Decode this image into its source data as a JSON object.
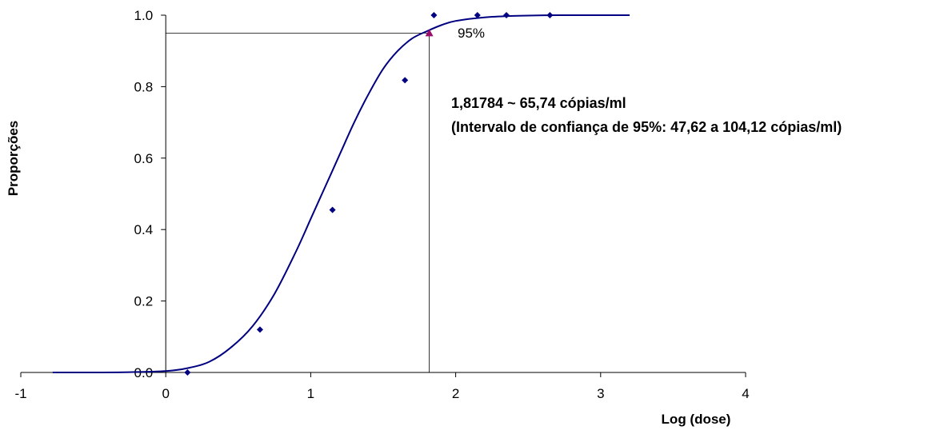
{
  "chart_data": {
    "type": "scatter",
    "title": "",
    "xlabel": "Log (dose)",
    "ylabel": "Proporções",
    "xlim": [
      -1,
      4
    ],
    "ylim": [
      0,
      1
    ],
    "x_ticks": [
      "-1",
      "0",
      "1",
      "2",
      "3",
      "4"
    ],
    "y_ticks": [
      "0.0",
      "0.2",
      "0.4",
      "0.6",
      "0.8",
      "1.0"
    ],
    "grid": false,
    "legend": "none",
    "series": [
      {
        "kind": "points",
        "marker": "diamond",
        "color": "#000080",
        "x": [
          0.15,
          0.65,
          1.15,
          1.65,
          1.85,
          2.15,
          2.35,
          2.65
        ],
        "y": [
          0.0,
          0.12,
          0.455,
          0.818,
          1.0,
          1.0,
          1.0,
          1.0
        ]
      },
      {
        "kind": "curve",
        "color": "#000080",
        "x": [
          -0.78,
          -0.5,
          -0.25,
          0.0,
          0.15,
          0.3,
          0.45,
          0.6,
          0.75,
          0.9,
          1.0,
          1.1,
          1.2,
          1.3,
          1.4,
          1.5,
          1.6,
          1.7,
          1.8,
          1.9,
          2.0,
          2.2,
          2.4,
          2.7,
          3.0,
          3.2
        ],
        "y": [
          0.0,
          0.0,
          0.001,
          0.004,
          0.012,
          0.03,
          0.07,
          0.13,
          0.22,
          0.34,
          0.43,
          0.52,
          0.61,
          0.7,
          0.78,
          0.85,
          0.9,
          0.935,
          0.955,
          0.972,
          0.984,
          0.994,
          0.998,
          1.0,
          1.0,
          1.0
        ]
      }
    ],
    "highlight_point": {
      "x": 1.818,
      "y": 0.95,
      "color": "#9b0d6b",
      "label": "95%"
    },
    "annotation_lines": [
      "1,81784 ~ 65,74 cópias/ml",
      "(Intervalo de confiança de 95%: 47,62 a 104,12 cópias/ml)"
    ]
  }
}
